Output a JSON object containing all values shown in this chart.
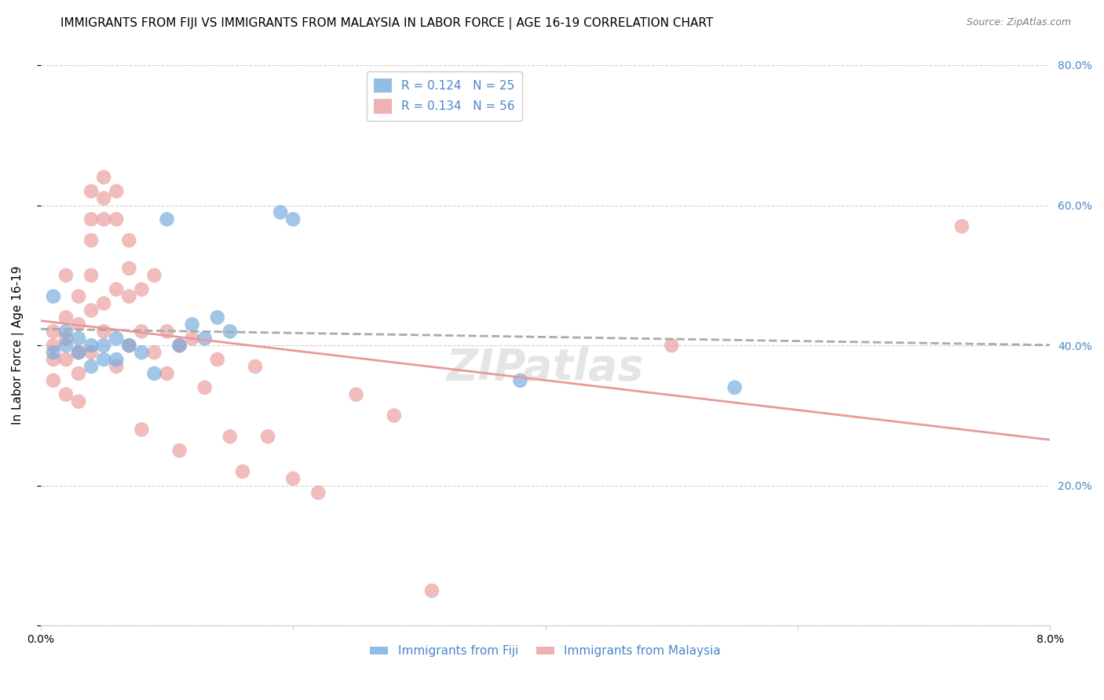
{
  "title": "IMMIGRANTS FROM FIJI VS IMMIGRANTS FROM MALAYSIA IN LABOR FORCE | AGE 16-19 CORRELATION CHART",
  "source": "Source: ZipAtlas.com",
  "ylabel": "In Labor Force | Age 16-19",
  "xlim": [
    0.0,
    0.08
  ],
  "ylim": [
    0.0,
    0.8
  ],
  "yticks": [
    0.0,
    0.2,
    0.4,
    0.6,
    0.8
  ],
  "ytick_labels": [
    "",
    "20.0%",
    "40.0%",
    "60.0%",
    "80.0%"
  ],
  "xticks": [
    0.0,
    0.02,
    0.04,
    0.06,
    0.08
  ],
  "xtick_labels": [
    "0.0%",
    "",
    "",
    "",
    "8.0%"
  ],
  "fiji_color": "#6fa8dc",
  "malaysia_color": "#ea9999",
  "fiji_R": 0.124,
  "fiji_N": 25,
  "malaysia_R": 0.134,
  "malaysia_N": 56,
  "fiji_scatter_x": [
    0.001,
    0.001,
    0.002,
    0.002,
    0.003,
    0.003,
    0.004,
    0.004,
    0.005,
    0.005,
    0.006,
    0.006,
    0.007,
    0.008,
    0.009,
    0.01,
    0.011,
    0.012,
    0.013,
    0.014,
    0.015,
    0.019,
    0.02,
    0.038,
    0.055
  ],
  "fiji_scatter_y": [
    0.47,
    0.39,
    0.42,
    0.4,
    0.41,
    0.39,
    0.4,
    0.37,
    0.4,
    0.38,
    0.41,
    0.38,
    0.4,
    0.39,
    0.36,
    0.58,
    0.4,
    0.43,
    0.41,
    0.44,
    0.42,
    0.59,
    0.58,
    0.35,
    0.34
  ],
  "malaysia_scatter_x": [
    0.001,
    0.001,
    0.001,
    0.001,
    0.002,
    0.002,
    0.002,
    0.002,
    0.002,
    0.003,
    0.003,
    0.003,
    0.003,
    0.003,
    0.004,
    0.004,
    0.004,
    0.004,
    0.004,
    0.004,
    0.005,
    0.005,
    0.005,
    0.005,
    0.005,
    0.006,
    0.006,
    0.006,
    0.006,
    0.007,
    0.007,
    0.007,
    0.007,
    0.008,
    0.008,
    0.008,
    0.009,
    0.009,
    0.01,
    0.01,
    0.011,
    0.011,
    0.012,
    0.013,
    0.014,
    0.015,
    0.016,
    0.017,
    0.018,
    0.02,
    0.022,
    0.025,
    0.028,
    0.031,
    0.05,
    0.073
  ],
  "malaysia_scatter_y": [
    0.42,
    0.4,
    0.38,
    0.35,
    0.5,
    0.44,
    0.41,
    0.38,
    0.33,
    0.47,
    0.43,
    0.39,
    0.36,
    0.32,
    0.62,
    0.58,
    0.55,
    0.5,
    0.45,
    0.39,
    0.64,
    0.61,
    0.58,
    0.46,
    0.42,
    0.62,
    0.58,
    0.48,
    0.37,
    0.55,
    0.51,
    0.47,
    0.4,
    0.48,
    0.42,
    0.28,
    0.5,
    0.39,
    0.42,
    0.36,
    0.4,
    0.25,
    0.41,
    0.34,
    0.38,
    0.27,
    0.22,
    0.37,
    0.27,
    0.21,
    0.19,
    0.33,
    0.3,
    0.05,
    0.4,
    0.57
  ],
  "background_color": "#ffffff",
  "grid_color": "#d0d0d0",
  "right_axis_color": "#4a86c8",
  "title_fontsize": 11,
  "axis_label_fontsize": 11,
  "tick_fontsize": 10,
  "legend_fontsize": 11,
  "watermark": "ZIPatlas"
}
